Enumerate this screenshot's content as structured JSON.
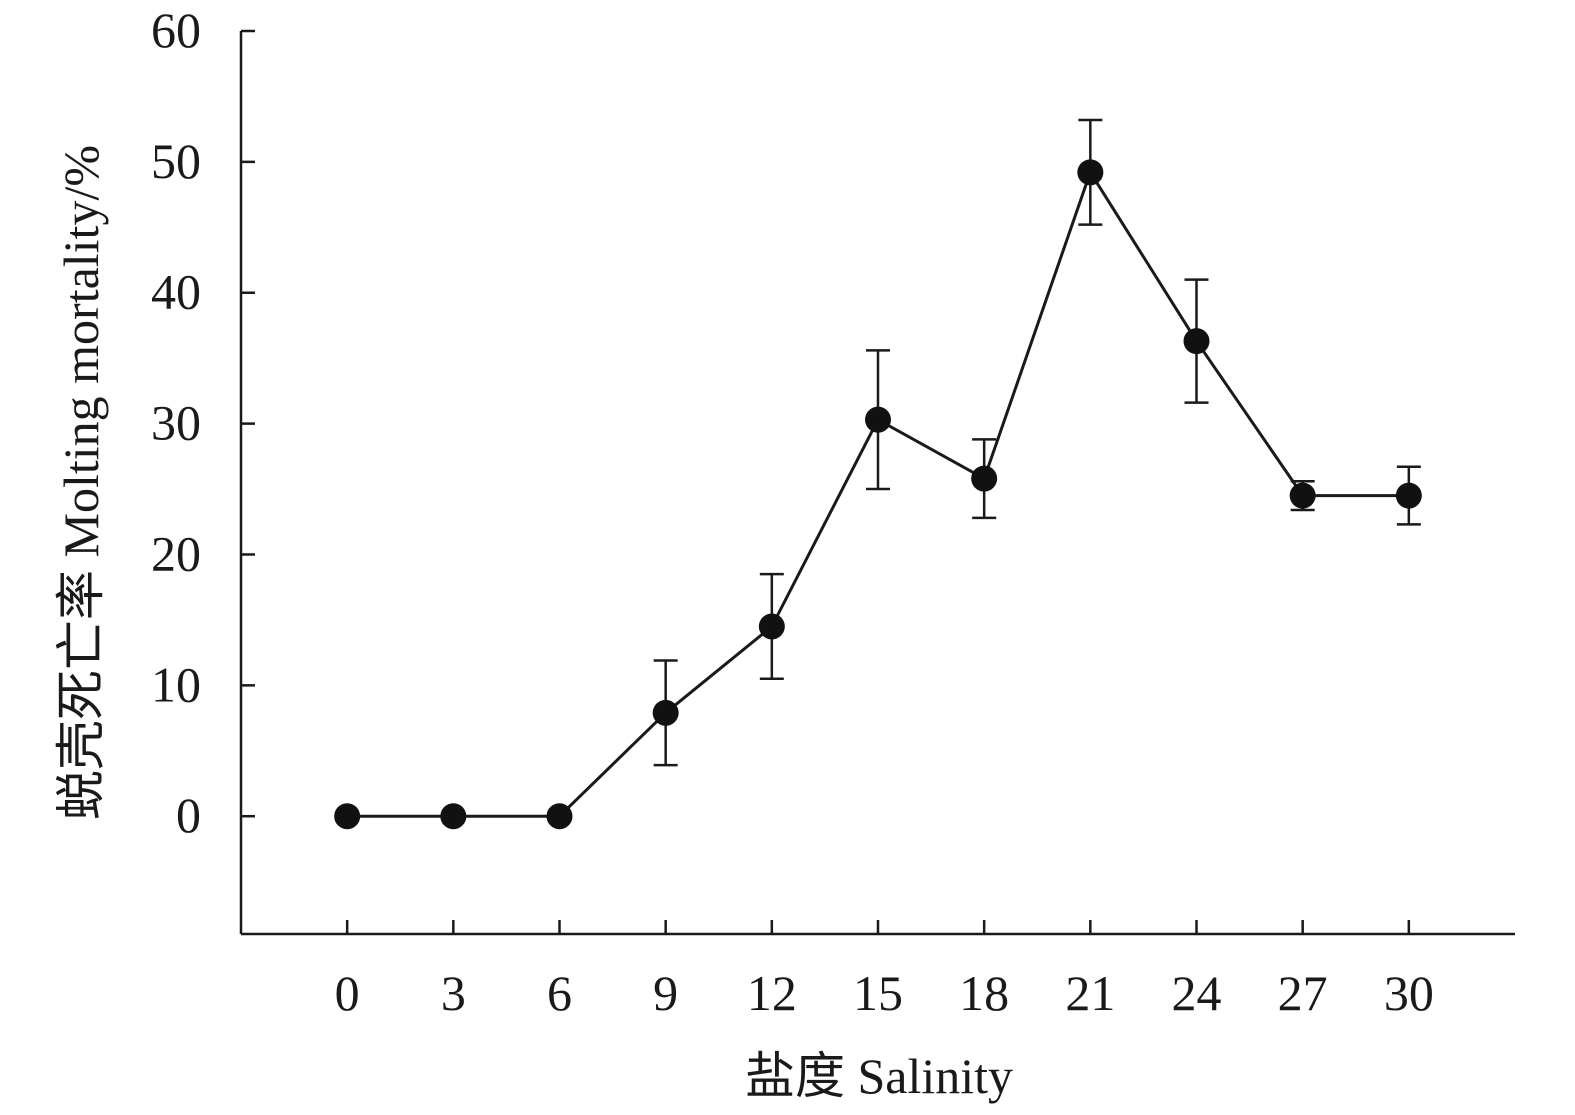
{
  "chart_data": {
    "type": "line",
    "title": "",
    "xlabel": "盐度  Salinity",
    "ylabel": "蜕壳死亡率 Molting mortality/%",
    "x": [
      0,
      3,
      6,
      9,
      12,
      15,
      18,
      21,
      24,
      27,
      30
    ],
    "x_tick_labels": [
      "0",
      "3",
      "6",
      "9",
      "12",
      "15",
      "18",
      "21",
      "24",
      "27",
      "30"
    ],
    "y_ticks": [
      0,
      10,
      20,
      30,
      40,
      50,
      60
    ],
    "y_tick_labels": [
      "0",
      "10",
      "20",
      "30",
      "40",
      "50",
      "60"
    ],
    "xlim": [
      -3,
      33
    ],
    "ylim": [
      -9,
      60
    ],
    "grid": false,
    "series": [
      {
        "values": [
          0,
          0,
          0,
          7.9,
          14.5,
          30.3,
          25.8,
          49.2,
          36.3,
          24.5,
          24.5
        ],
        "error": [
          0,
          0,
          0,
          4.0,
          4.0,
          5.3,
          3.0,
          4.0,
          4.7,
          1.1,
          2.2
        ]
      }
    ],
    "colors": {
      "line": "#1a1a1a",
      "marker": "#111111",
      "axis": "#1a1a1a"
    }
  }
}
